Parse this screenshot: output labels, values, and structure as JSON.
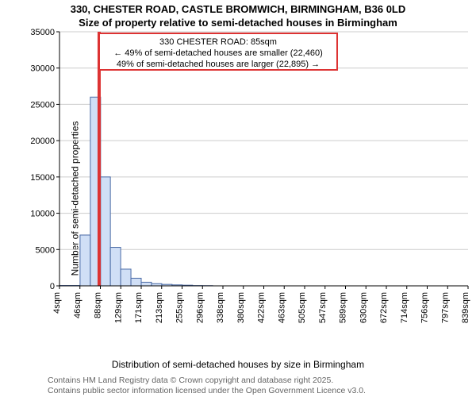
{
  "title_line1": "330, CHESTER ROAD, CASTLE BROMWICH, BIRMINGHAM, B36 0LD",
  "title_line2": "Size of property relative to semi-detached houses in Birmingham",
  "ylabel": "Number of semi-detached properties",
  "xlabel": "Distribution of semi-detached houses by size in Birmingham",
  "footer_line1": "Contains HM Land Registry data © Crown copyright and database right 2025.",
  "footer_line2": "Contains public sector information licensed under the Open Government Licence v3.0.",
  "annotation": {
    "line1": "330 CHESTER ROAD: 85sqm",
    "line2": "← 49% of semi-detached houses are smaller (22,460)",
    "line3": "49% of semi-detached houses are larger (22,895) →"
  },
  "chart": {
    "type": "histogram",
    "ylim": [
      0,
      35000
    ],
    "ytick_step": 5000,
    "yticks": [
      0,
      5000,
      10000,
      15000,
      20000,
      25000,
      30000,
      35000
    ],
    "xticks": [
      "4sqm",
      "46sqm",
      "88sqm",
      "129sqm",
      "171sqm",
      "213sqm",
      "255sqm",
      "296sqm",
      "338sqm",
      "380sqm",
      "422sqm",
      "463sqm",
      "505sqm",
      "547sqm",
      "589sqm",
      "630sqm",
      "672sqm",
      "714sqm",
      "756sqm",
      "797sqm",
      "839sqm"
    ],
    "xlim": [
      4,
      839
    ],
    "bar_fill_color": "#d0dff6",
    "bar_stroke_color": "#4a6aa5",
    "grid_color": "#cccccc",
    "background_color": "#ffffff",
    "marker_x": 85,
    "marker_color": "#dd3333",
    "bars": [
      {
        "x0": 4,
        "x1": 46,
        "value": 50
      },
      {
        "x0": 46,
        "x1": 67,
        "value": 7000
      },
      {
        "x0": 67,
        "x1": 88,
        "value": 26000
      },
      {
        "x0": 88,
        "x1": 108,
        "value": 15000
      },
      {
        "x0": 108,
        "x1": 129,
        "value": 5300
      },
      {
        "x0": 129,
        "x1": 150,
        "value": 2300
      },
      {
        "x0": 150,
        "x1": 171,
        "value": 1050
      },
      {
        "x0": 171,
        "x1": 192,
        "value": 500
      },
      {
        "x0": 192,
        "x1": 213,
        "value": 300
      },
      {
        "x0": 213,
        "x1": 234,
        "value": 200
      },
      {
        "x0": 234,
        "x1": 255,
        "value": 130
      },
      {
        "x0": 255,
        "x1": 276,
        "value": 90
      },
      {
        "x0": 276,
        "x1": 296,
        "value": 40
      },
      {
        "x0": 296,
        "x1": 317,
        "value": 30
      },
      {
        "x0": 317,
        "x1": 338,
        "value": 0
      },
      {
        "x0": 338,
        "x1": 839,
        "value": 0
      }
    ],
    "title_fontsize": 13,
    "label_fontsize": 12,
    "tick_fontsize": 11,
    "annotation_fontsize": 11
  }
}
